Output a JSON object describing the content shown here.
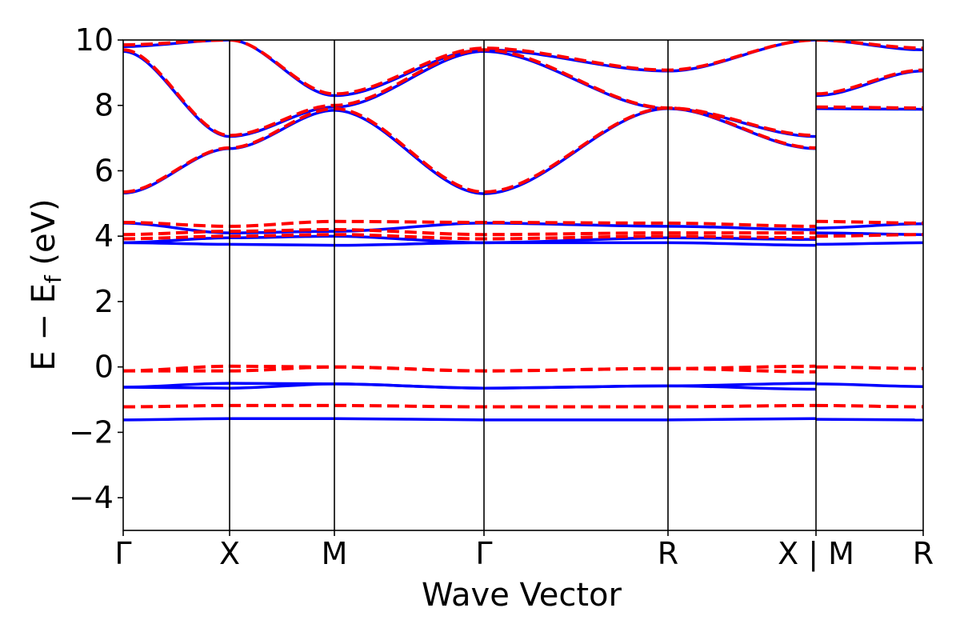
{
  "chart_data": {
    "type": "line",
    "title": "",
    "xlabel": "Wave Vector",
    "ylabel": "E − E",
    "ylabel_subscript": "f",
    "ylabel_unit": " (eV)",
    "xlim": [
      0,
      1
    ],
    "ylim": [
      -5,
      10
    ],
    "yticks": [
      -4,
      -2,
      0,
      2,
      4,
      6,
      8,
      10
    ],
    "ytick_labels": [
      "−4",
      "−2",
      "0",
      "2",
      "4",
      "6",
      "8",
      "10"
    ],
    "kpoints": [
      {
        "label": "Γ",
        "x": 0.0
      },
      {
        "label": "X",
        "x": 0.133
      },
      {
        "label": "M",
        "x": 0.264
      },
      {
        "label": "Γ",
        "x": 0.451
      },
      {
        "label": "R",
        "x": 0.681
      },
      {
        "label": "X | M",
        "x": 0.866
      },
      {
        "label": "R",
        "x": 1.0
      }
    ],
    "vlines_x": [
      0.133,
      0.264,
      0.451,
      0.681,
      0.866
    ],
    "grid": false,
    "legend": "none",
    "colors": {
      "blue": "#0000ff",
      "red": "#ff0000",
      "axis": "#000000"
    },
    "series": [
      {
        "style": "solid",
        "color": "#0000ff",
        "bands": [
          {
            "x": [
              0,
              0.133,
              0.264,
              0.451,
              0.681,
              0.866
            ],
            "y": [
              -1.62,
              -1.58,
              -1.58,
              -1.62,
              -1.62,
              -1.58
            ]
          },
          {
            "x": [
              0.866,
              1.0
            ],
            "y": [
              -1.6,
              -1.62
            ]
          },
          {
            "x": [
              0,
              0.133,
              0.264,
              0.451,
              0.681,
              0.866
            ],
            "y": [
              -0.62,
              -0.5,
              -0.52,
              -0.65,
              -0.58,
              -0.5
            ]
          },
          {
            "x": [
              0,
              0.133,
              0.264,
              0.451,
              0.681,
              0.866
            ],
            "y": [
              -0.62,
              -0.65,
              -0.52,
              -0.65,
              -0.58,
              -0.68
            ]
          },
          {
            "x": [
              0.866,
              1.0
            ],
            "y": [
              -0.52,
              -0.6
            ]
          },
          {
            "x": [
              0,
              0.133,
              0.264,
              0.451,
              0.681,
              0.866
            ],
            "y": [
              3.8,
              3.75,
              3.72,
              3.8,
              3.8,
              3.72
            ]
          },
          {
            "x": [
              0,
              0.133,
              0.264,
              0.451,
              0.681,
              0.866
            ],
            "y": [
              3.8,
              3.95,
              4.0,
              3.8,
              3.95,
              3.9
            ]
          },
          {
            "x": [
              0,
              0.133,
              0.264,
              0.451,
              0.681,
              0.866
            ],
            "y": [
              4.4,
              4.1,
              4.15,
              4.4,
              4.3,
              4.2
            ]
          },
          {
            "x": [
              0.866,
              1.0
            ],
            "y": [
              3.75,
              3.8
            ]
          },
          {
            "x": [
              0.866,
              1.0
            ],
            "y": [
              4.1,
              4.05
            ]
          },
          {
            "x": [
              0.866,
              1.0
            ],
            "y": [
              4.25,
              4.38
            ]
          },
          {
            "x": [
              0,
              0.133,
              0.264,
              0.451,
              0.681,
              0.866
            ],
            "y": [
              5.32,
              6.68,
              7.85,
              5.3,
              7.9,
              6.68
            ]
          },
          {
            "x": [
              0,
              0.133,
              0.264,
              0.451,
              0.681,
              0.866
            ],
            "y": [
              9.65,
              7.05,
              7.95,
              9.65,
              7.9,
              7.05
            ]
          },
          {
            "x": [
              0,
              0.133,
              0.264,
              0.451,
              0.681,
              0.866
            ],
            "y": [
              9.8,
              10.0,
              8.3,
              9.7,
              9.05,
              10.0
            ]
          },
          {
            "x": [
              0.866,
              1.0
            ],
            "y": [
              7.9,
              7.88
            ]
          },
          {
            "x": [
              0.866,
              1.0
            ],
            "y": [
              8.3,
              9.05
            ]
          },
          {
            "x": [
              0.866,
              1.0
            ],
            "y": [
              10.0,
              9.7
            ]
          }
        ]
      },
      {
        "style": "dashed",
        "color": "#ff0000",
        "bands": [
          {
            "x": [
              0,
              0.133,
              0.264,
              0.451,
              0.681,
              0.866
            ],
            "y": [
              -1.22,
              -1.18,
              -1.18,
              -1.22,
              -1.22,
              -1.18
            ]
          },
          {
            "x": [
              0.866,
              1.0
            ],
            "y": [
              -1.18,
              -1.22
            ]
          },
          {
            "x": [
              0,
              0.133,
              0.264,
              0.451,
              0.681,
              0.866
            ],
            "y": [
              -0.12,
              0.02,
              0.0,
              -0.12,
              -0.05,
              0.02
            ]
          },
          {
            "x": [
              0,
              0.133,
              0.264,
              0.451,
              0.681,
              0.866
            ],
            "y": [
              -0.12,
              -0.12,
              0.0,
              -0.12,
              -0.05,
              -0.15
            ]
          },
          {
            "x": [
              0.866,
              1.0
            ],
            "y": [
              0.0,
              -0.05
            ]
          },
          {
            "x": [
              0,
              0.133,
              0.264,
              0.451,
              0.681,
              0.866
            ],
            "y": [
              3.92,
              4.0,
              4.05,
              3.92,
              4.0,
              3.95
            ]
          },
          {
            "x": [
              0,
              0.133,
              0.264,
              0.451,
              0.681,
              0.866
            ],
            "y": [
              4.05,
              4.15,
              4.2,
              4.05,
              4.1,
              4.1
            ]
          },
          {
            "x": [
              0,
              0.133,
              0.264,
              0.451,
              0.681,
              0.866
            ],
            "y": [
              4.42,
              4.3,
              4.45,
              4.42,
              4.4,
              4.3
            ]
          },
          {
            "x": [
              0.866,
              1.0
            ],
            "y": [
              4.0,
              4.05
            ]
          },
          {
            "x": [
              0.866,
              1.0
            ],
            "y": [
              4.45,
              4.4
            ]
          },
          {
            "x": [
              0,
              0.133,
              0.264,
              0.451,
              0.681,
              0.866
            ],
            "y": [
              5.35,
              6.7,
              7.9,
              5.35,
              7.92,
              6.7
            ]
          },
          {
            "x": [
              0,
              0.133,
              0.264,
              0.451,
              0.681,
              0.866
            ],
            "y": [
              9.7,
              7.08,
              8.0,
              9.7,
              7.92,
              7.08
            ]
          },
          {
            "x": [
              0,
              0.133,
              0.264,
              0.451,
              0.681,
              0.866
            ],
            "y": [
              9.85,
              10.0,
              8.35,
              9.75,
              9.08,
              10.0
            ]
          },
          {
            "x": [
              0.866,
              1.0
            ],
            "y": [
              7.95,
              7.92
            ]
          },
          {
            "x": [
              0.866,
              1.0
            ],
            "y": [
              8.35,
              9.08
            ]
          },
          {
            "x": [
              0.866,
              1.0
            ],
            "y": [
              10.0,
              9.75
            ]
          }
        ]
      }
    ]
  }
}
